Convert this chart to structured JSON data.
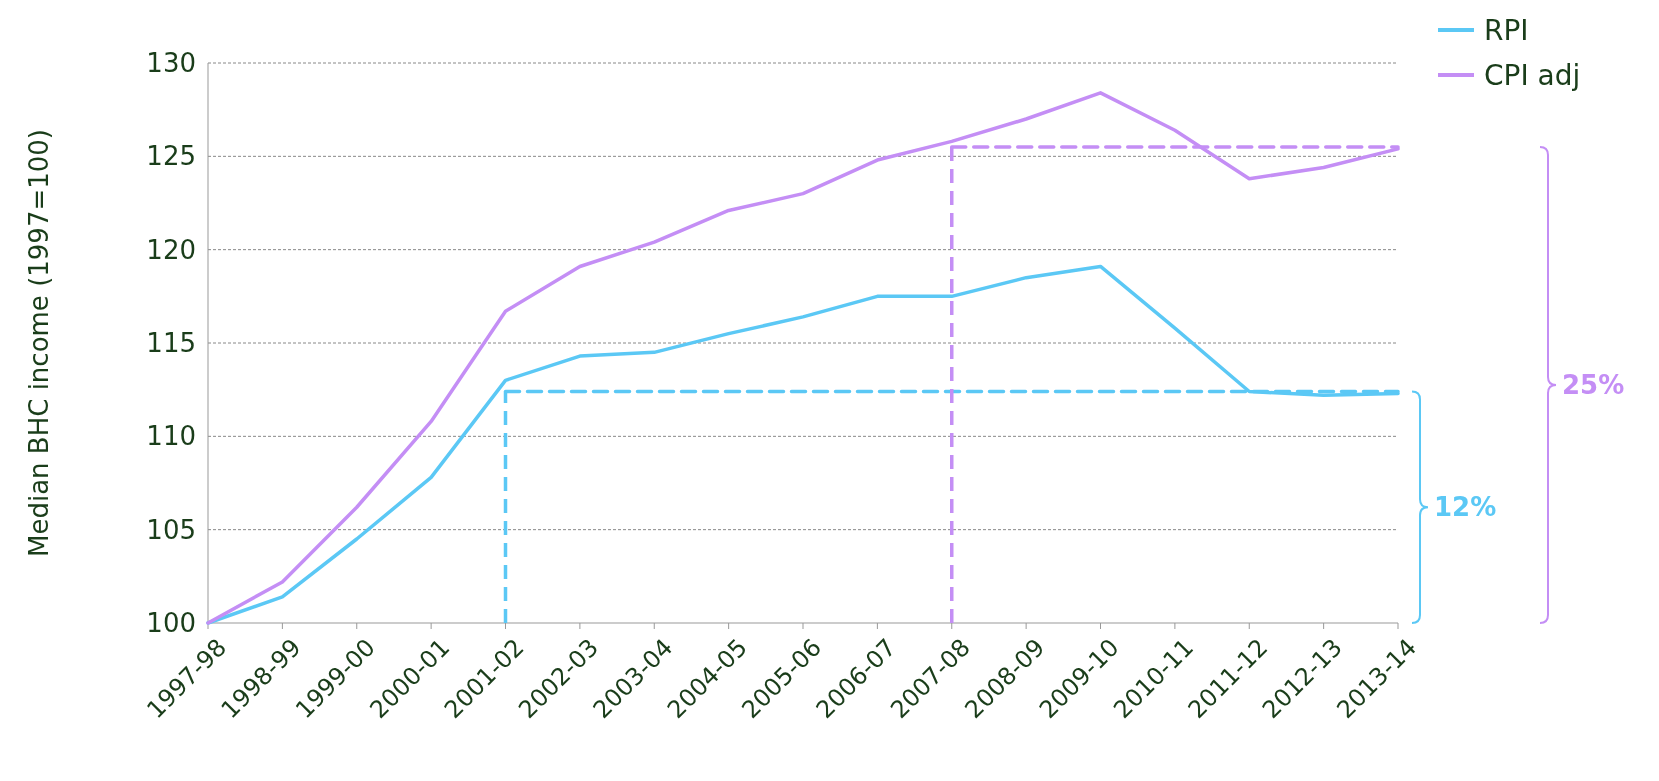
{
  "chart_data": {
    "type": "line",
    "ylabel": "Median BHC income (1997=100)",
    "categories": [
      "1997-98",
      "1998-99",
      "1999-00",
      "2000-01",
      "2001-02",
      "2002-03",
      "2003-04",
      "2004-05",
      "2005-06",
      "2006-07",
      "2007-08",
      "2008-09",
      "2009-10",
      "2010-11",
      "2011-12",
      "2012-13",
      "2013-14"
    ],
    "series": [
      {
        "name": "RPI",
        "color": "#5bc8f5",
        "values": [
          100,
          101.4,
          104.5,
          107.8,
          113.0,
          114.3,
          114.5,
          115.5,
          116.4,
          117.5,
          117.5,
          118.5,
          119.1,
          115.8,
          112.4,
          112.2,
          112.3
        ]
      },
      {
        "name": "CPI adj",
        "color": "#c48ef5",
        "values": [
          100,
          102.2,
          106.2,
          110.8,
          116.7,
          119.1,
          120.4,
          122.1,
          123.0,
          124.8,
          125.8,
          127.0,
          128.4,
          126.4,
          123.8,
          124.4,
          125.4
        ]
      },
      {
        "color": "#5bc8f5",
        "line_style": "dashed",
        "values": [
          null,
          null,
          null,
          null,
          112.4,
          112.4,
          112.4,
          112.4,
          112.4,
          112.4,
          112.4,
          112.4,
          112.4,
          112.4,
          112.4,
          112.4,
          112.4
        ]
      },
      {
        "color": "#c48ef5",
        "line_style": "dashed",
        "values": [
          null,
          null,
          null,
          null,
          null,
          null,
          null,
          null,
          null,
          null,
          125.5,
          125.5,
          125.5,
          125.5,
          125.5,
          125.5,
          125.5
        ]
      }
    ],
    "ylim": [
      100,
      130
    ],
    "yticks": [
      100,
      105,
      110,
      115,
      120,
      125,
      130
    ],
    "grid": "y",
    "legend": "top right",
    "marker": "none",
    "line_style": "solid",
    "ref_lines": [
      {
        "axis": "x",
        "value": "2001-02",
        "color": "#5bc8f5",
        "line_style": "dashed"
      },
      {
        "axis": "x",
        "value": "2007-08",
        "color": "#c48ef5",
        "line_style": "dashed"
      }
    ],
    "annotations": [
      "12%",
      "25%"
    ]
  }
}
